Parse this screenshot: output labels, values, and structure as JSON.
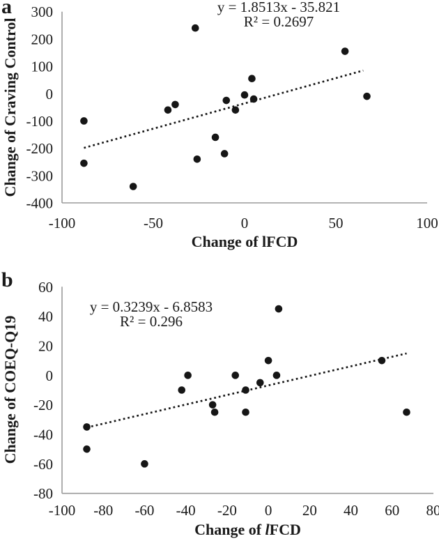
{
  "chart_data": [
    {
      "type": "scatter",
      "panel_label": "a",
      "equation": "y = 1.8513x - 35.821",
      "r_squared": "R² = 0.2697",
      "xlabel": "Change of lFCD",
      "xlabel_parts": {
        "prefix": "Change of lFCD",
        "italic": "",
        "suffix": ""
      },
      "ylabel": "Change of Craving Control",
      "xlim": [
        -100,
        100
      ],
      "ylim": [
        -400,
        300
      ],
      "xticks": [
        -100,
        -50,
        0,
        50,
        100
      ],
      "yticks": [
        300,
        200,
        100,
        0,
        -100,
        -200,
        -300,
        -400
      ],
      "grid": false,
      "legend": "none",
      "points": [
        [
          -27,
          240
        ],
        [
          55,
          155
        ],
        [
          4,
          55
        ],
        [
          0,
          -5
        ],
        [
          67,
          -10
        ],
        [
          5,
          -20
        ],
        [
          -10,
          -25
        ],
        [
          -38,
          -40
        ],
        [
          -42,
          -60
        ],
        [
          -5,
          -60
        ],
        [
          -88,
          -100
        ],
        [
          -16,
          -160
        ],
        [
          -11,
          -220
        ],
        [
          -26,
          -240
        ],
        [
          -88,
          -255
        ],
        [
          -61,
          -340
        ]
      ],
      "trendline": {
        "slope": 1.8513,
        "intercept": -35.821,
        "x_start": -88,
        "x_end": 65,
        "style": "dotted"
      },
      "marker_color": "#161616",
      "axis_color": "#9a9a9a"
    },
    {
      "type": "scatter",
      "panel_label": "b",
      "equation": "y = 0.3239x - 6.8583",
      "r_squared": "R² = 0.296",
      "xlabel": "Change of lFCD",
      "xlabel_parts": {
        "prefix": "Change of ",
        "italic": "l",
        "suffix": "FCD"
      },
      "ylabel": "Change of COEQ-Q19",
      "xlim": [
        -100,
        80
      ],
      "ylim": [
        -80,
        60
      ],
      "xticks": [
        -100,
        -80,
        -60,
        -40,
        -20,
        0,
        20,
        40,
        60,
        80
      ],
      "yticks": [
        60,
        40,
        20,
        0,
        -20,
        -40,
        -60,
        -80
      ],
      "grid": false,
      "legend": "none",
      "points": [
        [
          5,
          45
        ],
        [
          0,
          10
        ],
        [
          55,
          10
        ],
        [
          -39,
          0
        ],
        [
          -16,
          0
        ],
        [
          4,
          0
        ],
        [
          -4,
          -5
        ],
        [
          -42,
          -10
        ],
        [
          -11,
          -10
        ],
        [
          -27,
          -20
        ],
        [
          -26,
          -25
        ],
        [
          -11,
          -25
        ],
        [
          67,
          -25
        ],
        [
          -88,
          -35
        ],
        [
          -88,
          -50
        ],
        [
          -60,
          -60
        ]
      ],
      "trendline": {
        "slope": 0.3239,
        "intercept": -6.8583,
        "x_start": -88,
        "x_end": 67,
        "style": "dotted"
      },
      "marker_color": "#161616",
      "axis_color": "#9a9a9a"
    }
  ]
}
